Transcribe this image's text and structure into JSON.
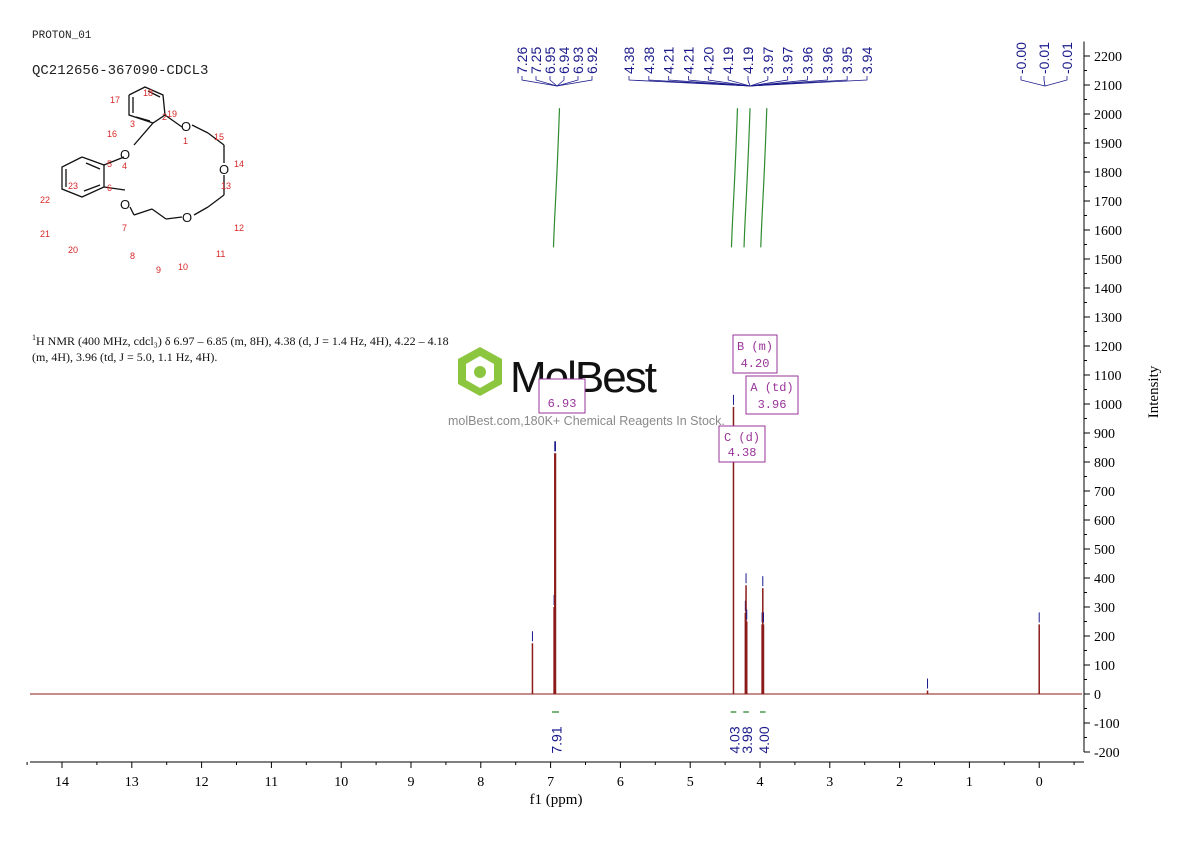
{
  "header": {
    "experiment": "PROTON_01",
    "sample_id": "QC212656-367090-CDCL3"
  },
  "nmr_description": {
    "prefix_sup": "1",
    "text": "H NMR (400 MHz, cdcl₃) δ 6.97 – 6.85 (m, 8H), 4.38 (d, J = 1.4 Hz, 4H), 4.22 – 4.18 (m, 4H), 3.96 (td, J = 5.0, 1.1 Hz, 4H)."
  },
  "watermark": {
    "brand": "MolBest",
    "subtitle": "molBest.com,180K+ Chemical Reagents In Stock."
  },
  "structure": {
    "atom_labels": [
      "1",
      "2",
      "3",
      "4",
      "5",
      "6",
      "7",
      "8",
      "9",
      "10",
      "11",
      "12",
      "13",
      "14",
      "15",
      "16",
      "17",
      "18",
      "19",
      "20",
      "21",
      "22",
      "23"
    ],
    "oxygen_symbol": "O"
  },
  "colors": {
    "spectrum": "#8b1a1a",
    "peak_label": "#1a1a8c",
    "integral": "#2e8b2e",
    "annotation": "#993399",
    "axis": "#000000",
    "atom_number": "#d62728"
  },
  "chart_data": {
    "type": "line",
    "title": "",
    "xlabel": "f1 (ppm)",
    "ylabel": "Intensity",
    "xlim": [
      14.5,
      -0.5
    ],
    "ylim": [
      -200,
      2250
    ],
    "x_ticks": [
      14,
      13,
      12,
      11,
      10,
      9,
      8,
      7,
      6,
      5,
      4,
      3,
      2,
      1,
      0
    ],
    "y_ticks": [
      2200,
      2100,
      2000,
      1900,
      1800,
      1700,
      1600,
      1500,
      1400,
      1300,
      1200,
      1100,
      1000,
      900,
      800,
      700,
      600,
      500,
      400,
      300,
      200,
      100,
      0,
      -100,
      -200
    ],
    "peaks": [
      {
        "ppm": 7.26,
        "intensity": 175
      },
      {
        "ppm": 6.95,
        "intensity": 300
      },
      {
        "ppm": 6.94,
        "intensity": 830
      },
      {
        "ppm": 6.93,
        "intensity": 830
      },
      {
        "ppm": 4.38,
        "intensity": 990
      },
      {
        "ppm": 4.21,
        "intensity": 280
      },
      {
        "ppm": 4.2,
        "intensity": 375
      },
      {
        "ppm": 4.19,
        "intensity": 250
      },
      {
        "ppm": 3.97,
        "intensity": 240
      },
      {
        "ppm": 3.96,
        "intensity": 365
      },
      {
        "ppm": 3.95,
        "intensity": 240
      },
      {
        "ppm": 1.6,
        "intensity": 12
      },
      {
        "ppm": 0.0,
        "intensity": 240
      }
    ],
    "peak_label_groups": [
      [
        "7.26",
        "7.25",
        "6.95",
        "6.94",
        "6.93",
        "6.92"
      ],
      [
        "4.38",
        "4.38",
        "4.21",
        "4.21",
        "4.20",
        "4.19",
        "4.19",
        "3.97",
        "3.97",
        "3.96",
        "3.96",
        "3.95",
        "3.94"
      ],
      [
        "-0.00",
        "-0.01",
        "-0.01"
      ]
    ],
    "integrals": [
      {
        "from": 6.98,
        "to": 6.88,
        "value": "7.91"
      },
      {
        "from": 4.42,
        "to": 4.34,
        "value": "4.03"
      },
      {
        "from": 4.24,
        "to": 4.16,
        "value": "3.98"
      },
      {
        "from": 4.0,
        "to": 3.92,
        "value": "4.00"
      }
    ],
    "multiplets": [
      {
        "label": "B (m)",
        "shift": "4.20"
      },
      {
        "label": "A (td)",
        "shift": "3.96"
      },
      {
        "label": "",
        "shift": "6.93"
      },
      {
        "label": "C (d)",
        "shift": "4.38"
      }
    ]
  }
}
